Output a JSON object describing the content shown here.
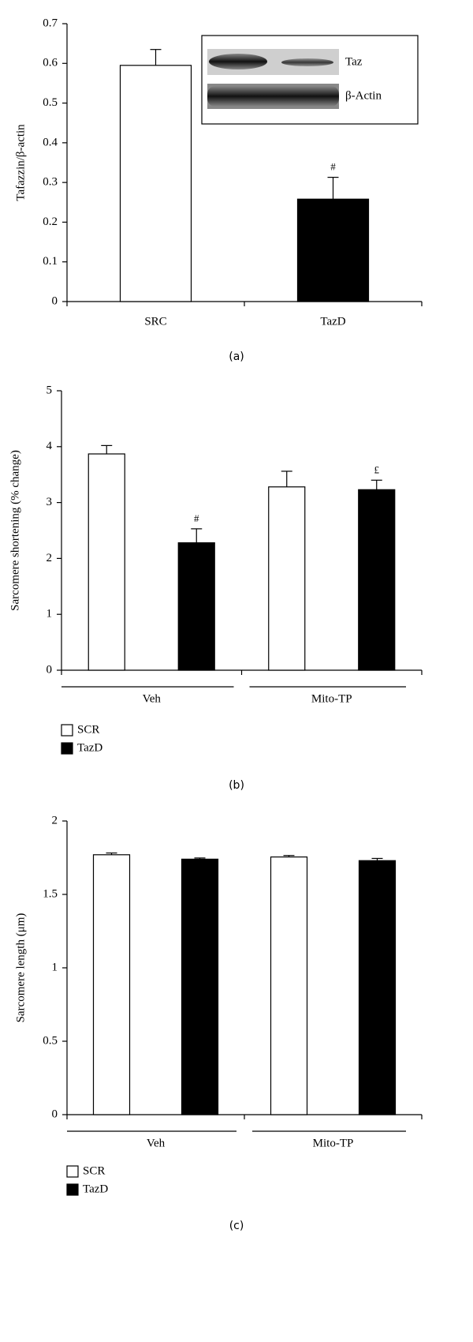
{
  "chart_data": [
    {
      "type": "bar",
      "ylabel": "Tafazzin/β-actin",
      "categories": [
        "SRC",
        "TazD"
      ],
      "series": [
        {
          "values": [
            0.595,
            0.258
          ],
          "errors": [
            0.04,
            0.055
          ],
          "colors": [
            "#ffffff",
            "#000000"
          ],
          "annotations": [
            null,
            "#"
          ]
        }
      ],
      "ylim": [
        0,
        0.7
      ],
      "yticks": [
        0,
        0.1,
        0.2,
        0.3,
        0.4,
        0.5,
        0.6,
        0.7
      ],
      "inset": {
        "labels": [
          "Taz",
          "β-Actin"
        ]
      },
      "caption": "(a)"
    },
    {
      "type": "bar",
      "ylabel": "Sarcomere shortening (% change)",
      "categories": [
        "Veh",
        "Mito-TP"
      ],
      "series": [
        {
          "name": "SCR",
          "color": "#ffffff",
          "values": [
            3.87,
            3.28
          ],
          "errors": [
            0.15,
            0.28
          ],
          "annotations": [
            null,
            null
          ]
        },
        {
          "name": "TazD",
          "color": "#000000",
          "values": [
            2.28,
            3.23
          ],
          "errors": [
            0.25,
            0.17
          ],
          "annotations": [
            "#",
            "£"
          ]
        }
      ],
      "ylim": [
        0,
        5
      ],
      "yticks": [
        0,
        1,
        2,
        3,
        4,
        5
      ],
      "legend": "below-left",
      "caption": "(b)"
    },
    {
      "type": "bar",
      "ylabel": "Sarcomere length (μm)",
      "categories": [
        "Veh",
        "Mito-TP"
      ],
      "series": [
        {
          "name": "SCR",
          "color": "#ffffff",
          "values": [
            1.77,
            1.755
          ],
          "errors": [
            0.012,
            0.01
          ],
          "annotations": [
            null,
            null
          ]
        },
        {
          "name": "TazD",
          "color": "#000000",
          "values": [
            1.74,
            1.73
          ],
          "errors": [
            0.008,
            0.015
          ],
          "annotations": [
            null,
            null
          ]
        }
      ],
      "ylim": [
        0,
        2
      ],
      "yticks": [
        0,
        0.5,
        1,
        1.5,
        2
      ],
      "legend": "below-left",
      "caption": "(c)"
    }
  ]
}
